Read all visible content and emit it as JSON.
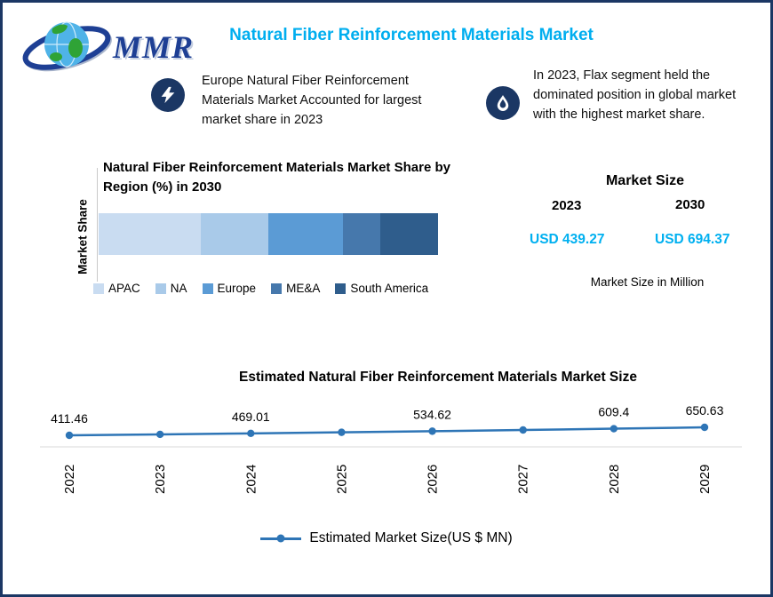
{
  "colors": {
    "border": "#1B3764",
    "navy": "#1B3764",
    "title_cyan": "#00AEEF",
    "value_cyan": "#00B0F0",
    "line": "#2E75B6",
    "axis_gray": "#D9D9D9"
  },
  "header": {
    "title": "Natural Fiber Reinforcement Materials Market",
    "logo_text": "MMR"
  },
  "callouts": [
    {
      "icon": "lightning-icon",
      "text": "Europe Natural Fiber Reinforcement Materials Market Accounted for largest market share in 2023"
    },
    {
      "icon": "water-drop-icon",
      "text": "In 2023, Flax segment held the dominated position in global market with the highest market share."
    }
  ],
  "market_size": {
    "heading": "Market Size",
    "columns": [
      {
        "year": "2023",
        "value": "USD 439.27"
      },
      {
        "year": "2030",
        "value": "USD 694.37"
      }
    ],
    "note": "Market Size in Million"
  },
  "chart_data": [
    {
      "type": "bar",
      "subtype": "horizontal-stacked",
      "title": "Natural Fiber Reinforcement Materials Market Share by Region (%) in 2030",
      "ylabel": "Market Share",
      "unit": "percent",
      "segments": [
        {
          "label": "APAC",
          "value": 30,
          "color": "#C9DCF1"
        },
        {
          "label": "NA",
          "value": 20,
          "color": "#A9CAE9"
        },
        {
          "label": "Europe",
          "value": 22,
          "color": "#5B9BD5"
        },
        {
          "label": "ME&A",
          "value": 11,
          "color": "#4678AC"
        },
        {
          "label": "South America",
          "value": 17,
          "color": "#2F5D8C"
        }
      ]
    },
    {
      "type": "line",
      "title": "Estimated Natural Fiber Reinforcement Materials Market Size",
      "legend": "Estimated Market Size(US $ MN)",
      "x": [
        "2022",
        "2023",
        "2024",
        "2025",
        "2026",
        "2027",
        "2028",
        "2029"
      ],
      "values": [
        411.46,
        439.27,
        469.01,
        501.2,
        534.62,
        571.3,
        609.4,
        650.63
      ],
      "labels": [
        "411.46",
        null,
        "469.01",
        null,
        "534.62",
        null,
        "609.4",
        "650.63"
      ],
      "ylim": [
        400,
        700
      ],
      "grid": false,
      "legend_position": "bottom"
    }
  ]
}
